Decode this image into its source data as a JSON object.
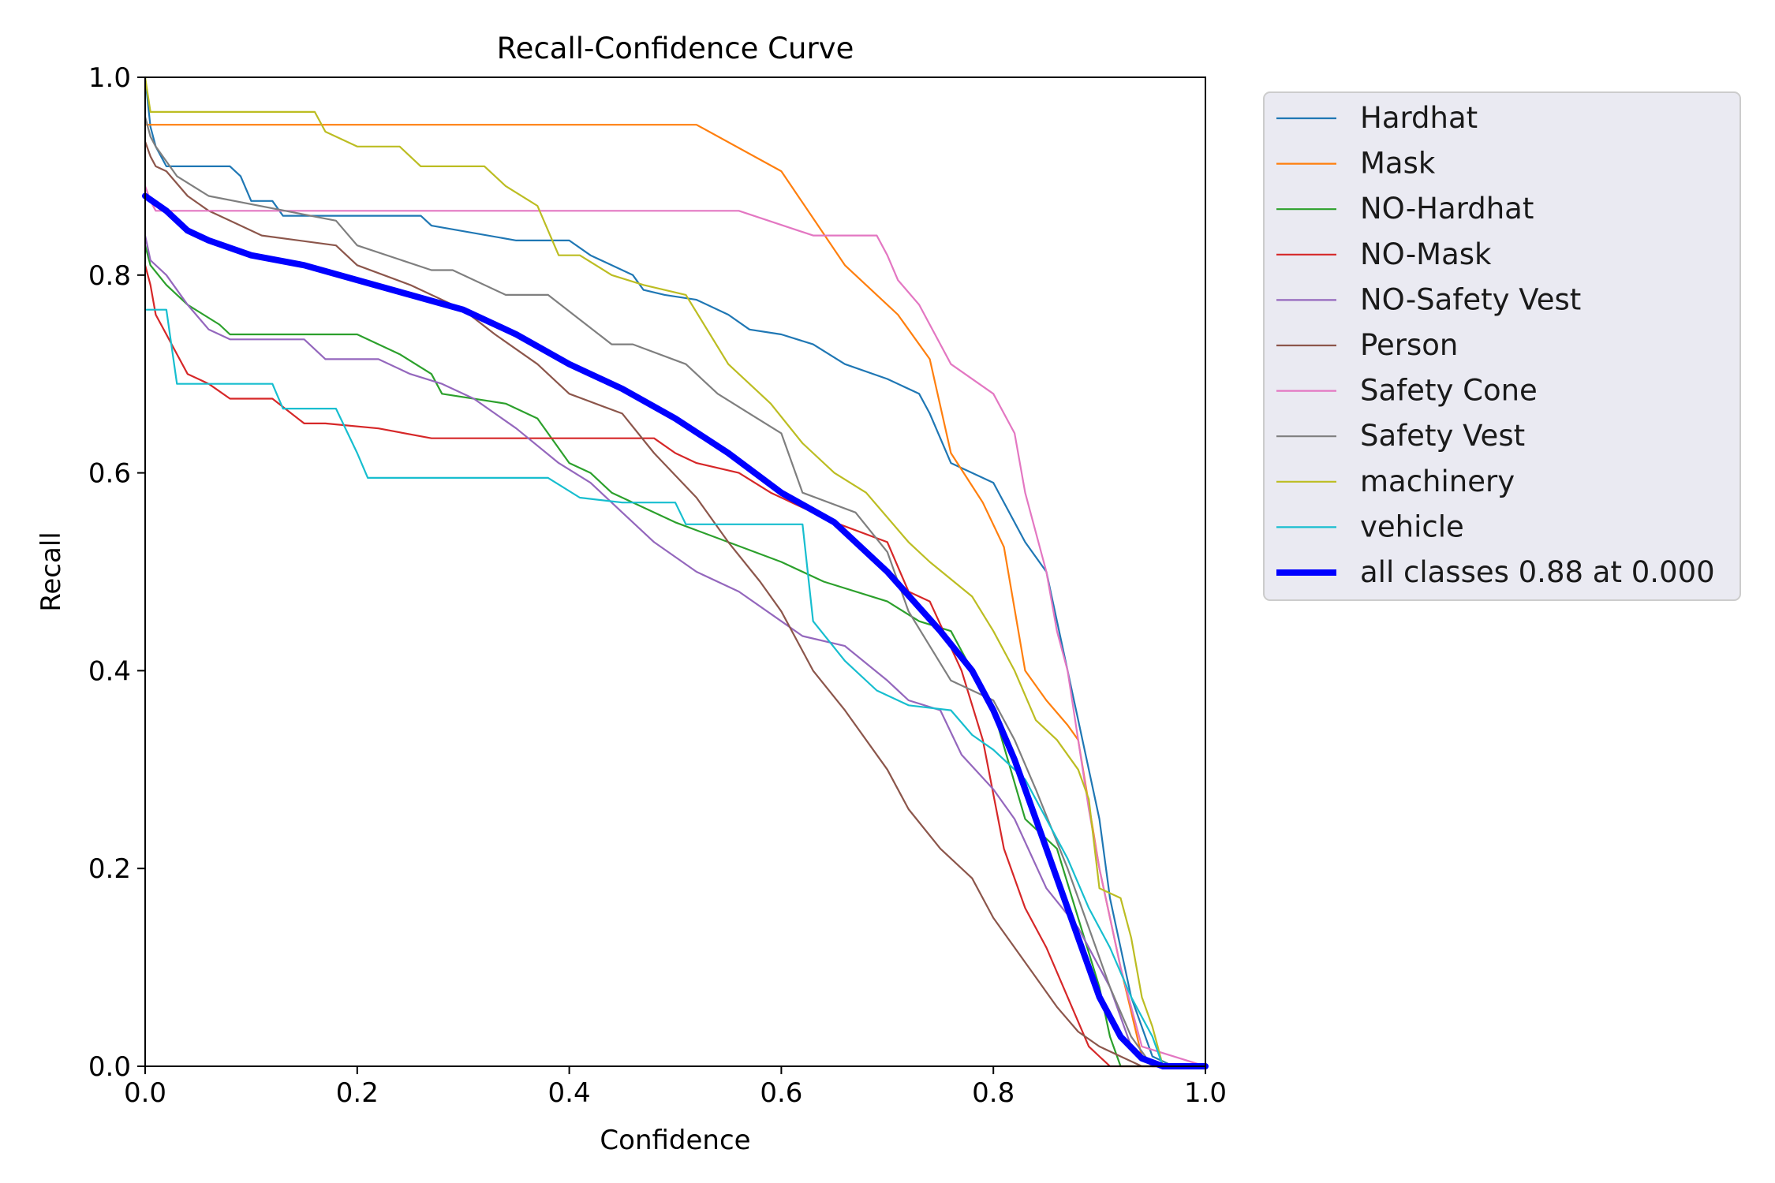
{
  "chart_data": {
    "type": "line",
    "title": "Recall-Confidence Curve",
    "xlabel": "Confidence",
    "ylabel": "Recall",
    "xlim": [
      0,
      1
    ],
    "ylim": [
      0,
      1
    ],
    "xticks": [
      "0.0",
      "0.2",
      "0.4",
      "0.6",
      "0.8",
      "1.0"
    ],
    "yticks": [
      "0.0",
      "0.2",
      "0.4",
      "0.6",
      "0.8",
      "1.0"
    ],
    "grid": false,
    "legend_position": "outside-right",
    "series": [
      {
        "name": "Hardhat",
        "color": "#1f77b4",
        "width": "thin",
        "x": [
          0,
          0.005,
          0.01,
          0.02,
          0.08,
          0.09,
          0.1,
          0.12,
          0.13,
          0.26,
          0.27,
          0.35,
          0.4,
          0.42,
          0.44,
          0.46,
          0.47,
          0.49,
          0.52,
          0.55,
          0.57,
          0.6,
          0.63,
          0.66,
          0.7,
          0.73,
          0.74,
          0.76,
          0.8,
          0.83,
          0.85,
          0.87,
          0.89,
          0.9,
          0.91,
          0.93,
          0.95,
          0.97,
          1.0
        ],
        "y": [
          1.0,
          0.95,
          0.93,
          0.91,
          0.91,
          0.9,
          0.875,
          0.875,
          0.86,
          0.86,
          0.85,
          0.835,
          0.835,
          0.82,
          0.81,
          0.8,
          0.785,
          0.78,
          0.775,
          0.76,
          0.745,
          0.74,
          0.73,
          0.71,
          0.695,
          0.68,
          0.66,
          0.61,
          0.59,
          0.53,
          0.5,
          0.4,
          0.3,
          0.25,
          0.17,
          0.07,
          0.01,
          0.0,
          0.0
        ]
      },
      {
        "name": "Mask",
        "color": "#ff7f0e",
        "width": "thin",
        "x": [
          0,
          0.52,
          0.6,
          0.66,
          0.71,
          0.74,
          0.76,
          0.79,
          0.81,
          0.83,
          0.85,
          0.87,
          0.88,
          0.9,
          0.92,
          0.94,
          0.95,
          1.0
        ],
        "y": [
          0.952,
          0.952,
          0.905,
          0.81,
          0.76,
          0.715,
          0.62,
          0.57,
          0.525,
          0.4,
          0.37,
          0.345,
          0.33,
          0.2,
          0.1,
          0.01,
          0.0,
          0.0
        ]
      },
      {
        "name": "NO-Hardhat",
        "color": "#2ca02c",
        "width": "thin",
        "x": [
          0,
          0.005,
          0.02,
          0.04,
          0.07,
          0.08,
          0.2,
          0.24,
          0.27,
          0.28,
          0.34,
          0.37,
          0.4,
          0.42,
          0.44,
          0.47,
          0.5,
          0.55,
          0.6,
          0.64,
          0.7,
          0.73,
          0.76,
          0.78,
          0.8,
          0.83,
          0.86,
          0.88,
          0.9,
          0.91,
          0.92,
          1.0
        ],
        "y": [
          0.83,
          0.81,
          0.79,
          0.77,
          0.75,
          0.74,
          0.74,
          0.72,
          0.7,
          0.68,
          0.67,
          0.655,
          0.61,
          0.6,
          0.58,
          0.565,
          0.55,
          0.53,
          0.51,
          0.49,
          0.47,
          0.45,
          0.44,
          0.4,
          0.36,
          0.25,
          0.22,
          0.15,
          0.08,
          0.03,
          0.0,
          0.0
        ]
      },
      {
        "name": "NO-Mask",
        "color": "#d62728",
        "width": "thin",
        "x": [
          0,
          0.005,
          0.01,
          0.02,
          0.03,
          0.04,
          0.06,
          0.08,
          0.12,
          0.15,
          0.17,
          0.22,
          0.27,
          0.48,
          0.5,
          0.52,
          0.56,
          0.59,
          0.61,
          0.65,
          0.7,
          0.72,
          0.74,
          0.77,
          0.79,
          0.81,
          0.83,
          0.85,
          0.87,
          0.89,
          0.9,
          0.91,
          1.0
        ],
        "y": [
          0.81,
          0.79,
          0.76,
          0.74,
          0.72,
          0.7,
          0.69,
          0.675,
          0.675,
          0.65,
          0.65,
          0.645,
          0.635,
          0.635,
          0.62,
          0.61,
          0.6,
          0.58,
          0.57,
          0.55,
          0.53,
          0.48,
          0.47,
          0.4,
          0.33,
          0.22,
          0.16,
          0.12,
          0.07,
          0.02,
          0.01,
          0.0,
          0.0
        ]
      },
      {
        "name": "NO-Safety Vest",
        "color": "#9467bd",
        "width": "thin",
        "x": [
          0,
          0.005,
          0.02,
          0.04,
          0.06,
          0.08,
          0.15,
          0.17,
          0.22,
          0.25,
          0.28,
          0.31,
          0.35,
          0.39,
          0.42,
          0.45,
          0.48,
          0.52,
          0.56,
          0.6,
          0.62,
          0.66,
          0.7,
          0.72,
          0.75,
          0.77,
          0.8,
          0.82,
          0.85,
          0.88,
          0.91,
          0.93,
          0.95,
          1.0
        ],
        "y": [
          0.84,
          0.815,
          0.8,
          0.77,
          0.745,
          0.735,
          0.735,
          0.715,
          0.715,
          0.7,
          0.69,
          0.675,
          0.645,
          0.61,
          0.59,
          0.56,
          0.53,
          0.5,
          0.48,
          0.45,
          0.435,
          0.425,
          0.39,
          0.37,
          0.36,
          0.315,
          0.28,
          0.25,
          0.18,
          0.14,
          0.08,
          0.02,
          0.0,
          0.0
        ]
      },
      {
        "name": "Person",
        "color": "#8c564b",
        "width": "thin",
        "x": [
          0,
          0.005,
          0.01,
          0.02,
          0.04,
          0.06,
          0.08,
          0.11,
          0.18,
          0.2,
          0.25,
          0.3,
          0.33,
          0.37,
          0.4,
          0.45,
          0.48,
          0.52,
          0.55,
          0.58,
          0.6,
          0.63,
          0.66,
          0.7,
          0.72,
          0.75,
          0.78,
          0.8,
          0.82,
          0.84,
          0.86,
          0.88,
          0.9,
          0.92,
          0.94,
          1.0
        ],
        "y": [
          0.935,
          0.92,
          0.91,
          0.905,
          0.88,
          0.865,
          0.855,
          0.84,
          0.83,
          0.81,
          0.79,
          0.765,
          0.74,
          0.71,
          0.68,
          0.66,
          0.62,
          0.575,
          0.53,
          0.49,
          0.46,
          0.4,
          0.36,
          0.3,
          0.26,
          0.22,
          0.19,
          0.15,
          0.12,
          0.09,
          0.06,
          0.035,
          0.02,
          0.01,
          0.0,
          0.0
        ]
      },
      {
        "name": "Safety Cone",
        "color": "#e377c2",
        "width": "thin",
        "x": [
          0,
          0.005,
          0.01,
          0.02,
          0.56,
          0.63,
          0.69,
          0.7,
          0.71,
          0.73,
          0.75,
          0.76,
          0.8,
          0.82,
          0.83,
          0.85,
          0.86,
          0.87,
          0.88,
          0.89,
          0.9,
          0.92,
          0.94,
          1.0
        ],
        "y": [
          0.89,
          0.875,
          0.865,
          0.865,
          0.865,
          0.84,
          0.84,
          0.82,
          0.795,
          0.77,
          0.73,
          0.71,
          0.68,
          0.64,
          0.58,
          0.5,
          0.44,
          0.4,
          0.33,
          0.26,
          0.2,
          0.1,
          0.02,
          0.0
        ]
      },
      {
        "name": "Safety Vest",
        "color": "#7f7f7f",
        "width": "thin",
        "x": [
          0,
          0.005,
          0.01,
          0.03,
          0.06,
          0.18,
          0.2,
          0.27,
          0.29,
          0.34,
          0.38,
          0.41,
          0.44,
          0.46,
          0.51,
          0.54,
          0.57,
          0.6,
          0.62,
          0.67,
          0.7,
          0.72,
          0.76,
          0.8,
          0.82,
          0.84,
          0.87,
          0.89,
          0.91,
          0.93,
          0.95,
          1.0
        ],
        "y": [
          0.96,
          0.94,
          0.93,
          0.9,
          0.88,
          0.855,
          0.83,
          0.805,
          0.805,
          0.78,
          0.78,
          0.755,
          0.73,
          0.73,
          0.71,
          0.68,
          0.66,
          0.64,
          0.58,
          0.56,
          0.52,
          0.46,
          0.39,
          0.37,
          0.33,
          0.28,
          0.2,
          0.14,
          0.08,
          0.03,
          0.0,
          0.0
        ]
      },
      {
        "name": "machinery",
        "color": "#bcbd22",
        "width": "thin",
        "x": [
          0,
          0.005,
          0.16,
          0.17,
          0.2,
          0.24,
          0.26,
          0.32,
          0.34,
          0.37,
          0.39,
          0.41,
          0.44,
          0.47,
          0.51,
          0.55,
          0.59,
          0.62,
          0.65,
          0.68,
          0.72,
          0.74,
          0.78,
          0.8,
          0.82,
          0.84,
          0.86,
          0.88,
          0.89,
          0.9,
          0.92,
          0.93,
          0.94,
          0.95,
          0.96,
          1.0
        ],
        "y": [
          1.0,
          0.965,
          0.965,
          0.945,
          0.93,
          0.93,
          0.91,
          0.91,
          0.89,
          0.87,
          0.82,
          0.82,
          0.8,
          0.79,
          0.78,
          0.71,
          0.67,
          0.63,
          0.6,
          0.58,
          0.53,
          0.51,
          0.475,
          0.44,
          0.4,
          0.35,
          0.33,
          0.3,
          0.27,
          0.18,
          0.17,
          0.13,
          0.07,
          0.04,
          0.0,
          0.0
        ]
      },
      {
        "name": "vehicle",
        "color": "#17becf",
        "width": "thin",
        "x": [
          0,
          0.02,
          0.03,
          0.12,
          0.13,
          0.18,
          0.2,
          0.21,
          0.38,
          0.41,
          0.45,
          0.5,
          0.51,
          0.62,
          0.63,
          0.66,
          0.69,
          0.72,
          0.76,
          0.78,
          0.8,
          0.83,
          0.85,
          0.87,
          0.89,
          0.91,
          0.93,
          0.95,
          0.96,
          1.0
        ],
        "y": [
          0.765,
          0.765,
          0.69,
          0.69,
          0.665,
          0.665,
          0.62,
          0.595,
          0.595,
          0.575,
          0.57,
          0.57,
          0.548,
          0.548,
          0.45,
          0.41,
          0.38,
          0.365,
          0.36,
          0.335,
          0.32,
          0.29,
          0.25,
          0.21,
          0.16,
          0.12,
          0.07,
          0.03,
          0.0,
          0.0
        ]
      },
      {
        "name": "all classes 0.88 at 0.000",
        "color": "#0000ff",
        "width": "thick",
        "x": [
          0,
          0.02,
          0.04,
          0.06,
          0.1,
          0.15,
          0.2,
          0.25,
          0.3,
          0.35,
          0.4,
          0.45,
          0.5,
          0.55,
          0.6,
          0.65,
          0.7,
          0.75,
          0.78,
          0.8,
          0.82,
          0.84,
          0.86,
          0.88,
          0.9,
          0.92,
          0.94,
          0.96,
          0.98,
          1.0
        ],
        "y": [
          0.88,
          0.865,
          0.845,
          0.835,
          0.82,
          0.81,
          0.795,
          0.78,
          0.765,
          0.74,
          0.71,
          0.685,
          0.655,
          0.62,
          0.58,
          0.55,
          0.5,
          0.44,
          0.4,
          0.36,
          0.31,
          0.25,
          0.19,
          0.13,
          0.07,
          0.03,
          0.008,
          0.0,
          0.0,
          0.0
        ]
      }
    ]
  }
}
